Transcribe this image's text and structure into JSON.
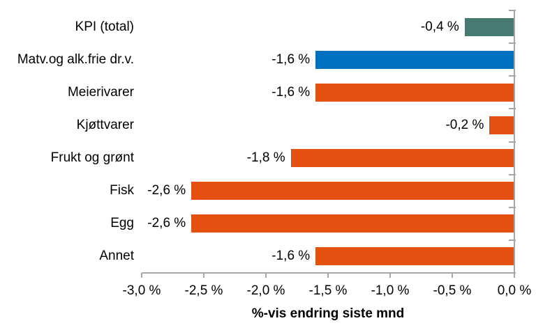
{
  "chart_data": {
    "type": "bar",
    "orientation": "horizontal",
    "title": "",
    "xlabel": "%-vis endring siste mnd",
    "ylabel": "",
    "xlim": [
      -3.0,
      0.0
    ],
    "grid": false,
    "legend": "none",
    "categories": [
      "KPI (total)",
      "Matv.og alk.frie dr.v.",
      "Meierivarer",
      "Kjøttvarer",
      "Frukt og grønt",
      "Fisk",
      "Egg",
      "Annet"
    ],
    "values": [
      -0.4,
      -1.6,
      -1.6,
      -0.2,
      -1.8,
      -2.6,
      -2.6,
      -1.6
    ],
    "value_labels": [
      "-0,4 %",
      "-1,6 %",
      "-1,6 %",
      "-0,2 %",
      "-1,8 %",
      "-2,6 %",
      "-2,6 %",
      "-1,6 %"
    ],
    "bar_colors": [
      "#477A70",
      "#0070C0",
      "#E4500F",
      "#E4500F",
      "#E4500F",
      "#E4500F",
      "#E4500F",
      "#E4500F"
    ],
    "x_ticks": [
      {
        "value": -3.0,
        "label": "-3,0 %"
      },
      {
        "value": -2.5,
        "label": "-2,5 %"
      },
      {
        "value": -2.0,
        "label": "-2,0 %"
      },
      {
        "value": -1.5,
        "label": "-1,5 %"
      },
      {
        "value": -1.0,
        "label": "-1,0 %"
      },
      {
        "value": -0.5,
        "label": "-0,5 %"
      },
      {
        "value": 0.0,
        "label": "0,0 %"
      }
    ],
    "colors": {
      "kpi_total_bar": "#477A70",
      "food_group_bar": "#0070C0",
      "category_bar": "#E4500F",
      "axis": "#A6A6A6",
      "text": "#000000"
    }
  }
}
